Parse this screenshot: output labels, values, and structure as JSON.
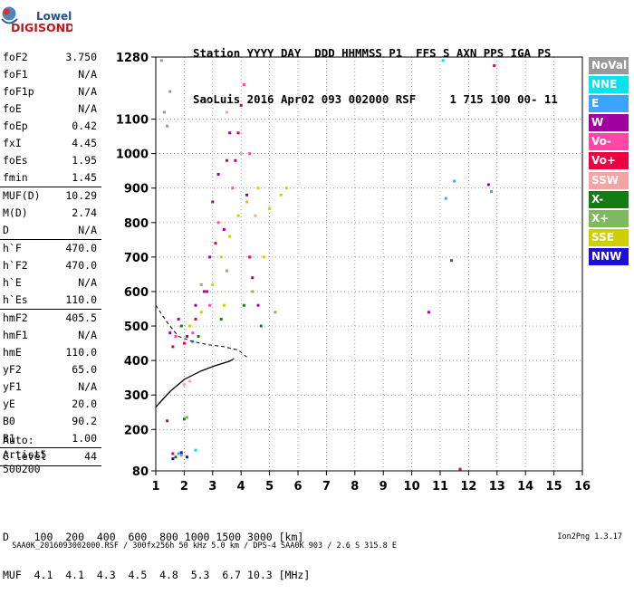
{
  "logo": {
    "line1": "Lowell",
    "line2": "DIGISONDE"
  },
  "header": {
    "row1": "Station YYYY DAY  DDD HHMMSS P1  FFS S AXN PPS IGA PS",
    "row2": "SaoLuis 2016 Apr02 093 002000 RSF     1 715 100 00- 11"
  },
  "params": [
    [
      {
        "label": "foF2",
        "value": "3.750"
      },
      {
        "label": "foF1",
        "value": "N/A"
      },
      {
        "label": "foF1p",
        "value": "N/A"
      },
      {
        "label": "foE",
        "value": "N/A"
      },
      {
        "label": "foEp",
        "value": "0.42"
      },
      {
        "label": "fxI",
        "value": "4.45"
      },
      {
        "label": "foEs",
        "value": "1.95"
      },
      {
        "label": "fmin",
        "value": "1.45"
      }
    ],
    [
      {
        "label": "MUF(D)",
        "value": "10.29"
      },
      {
        "label": "M(D)",
        "value": "2.74"
      },
      {
        "label": "D",
        "value": "N/A"
      }
    ],
    [
      {
        "label": "h`F",
        "value": "470.0"
      },
      {
        "label": "h`F2",
        "value": "470.0"
      },
      {
        "label": "h`E",
        "value": "N/A"
      },
      {
        "label": "h`Es",
        "value": "110.0"
      }
    ],
    [
      {
        "label": "hmF2",
        "value": "405.5"
      },
      {
        "label": "hmF1",
        "value": "N/A"
      },
      {
        "label": "hmE",
        "value": "110.0"
      },
      {
        "label": "yF2",
        "value": "65.0"
      },
      {
        "label": "yF1",
        "value": "N/A"
      },
      {
        "label": "yE",
        "value": "20.0"
      },
      {
        "label": "B0",
        "value": "90.2"
      },
      {
        "label": "B1",
        "value": "1.00"
      }
    ],
    [
      {
        "label": "C-level",
        "value": "44"
      }
    ]
  ],
  "auto": {
    "line1": "Auto:",
    "line2": "Artist5",
    "line3": "500200"
  },
  "legend": [
    {
      "name": "NoVal",
      "color": "#999999"
    },
    {
      "name": "NNE",
      "color": "#00e5f0"
    },
    {
      "name": "E",
      "color": "#3ea3ff"
    },
    {
      "name": "W",
      "color": "#a0009e"
    },
    {
      "name": "Vo-",
      "color": "#ff47a6"
    },
    {
      "name": "Vo+",
      "color": "#ee0040"
    },
    {
      "name": "SSW",
      "color": "#f4a4a4"
    },
    {
      "name": "X-",
      "color": "#137d13"
    },
    {
      "name": "X+",
      "color": "#80b860"
    },
    {
      "name": "SSE",
      "color": "#cfcf00"
    },
    {
      "name": "NNW",
      "color": "#1c10d8"
    }
  ],
  "dtable": {
    "row1": "D    100  200  400  600  800 1000 1500 3000 [km]",
    "row2": "MUF  4.1  4.1  4.3  4.5  4.8  5.3  6.7 10.3 [MHz]"
  },
  "footer": {
    "left": "SAA0K_2016093002000.RSF / 300fx256h 50 kHz 5.0 km / DPS-4 SAA0K 903 / 2.6 S 315.8 E",
    "right": "Ion2Png 1.3.17"
  },
  "chart_data": {
    "type": "scatter",
    "xlim": [
      1,
      16
    ],
    "ylim": [
      80,
      1280
    ],
    "xticks": [
      1,
      2,
      3,
      4,
      5,
      6,
      7,
      8,
      9,
      10,
      11,
      12,
      13,
      14,
      15,
      16
    ],
    "yticks": [
      80,
      200,
      300,
      400,
      500,
      600,
      700,
      800,
      900,
      1000,
      1100,
      1280
    ],
    "grid": true,
    "legend_position": "right",
    "series": [
      {
        "name": "W",
        "color": "#a0009e",
        "points": [
          [
            1.5,
            480
          ],
          [
            1.8,
            520
          ],
          [
            2.1,
            470
          ],
          [
            2.4,
            560
          ],
          [
            2.7,
            600
          ],
          [
            2.9,
            700
          ],
          [
            3.0,
            860
          ],
          [
            3.2,
            940
          ],
          [
            3.4,
            780
          ],
          [
            3.6,
            1060
          ],
          [
            3.8,
            980
          ],
          [
            4.0,
            1140
          ],
          [
            4.2,
            880
          ],
          [
            4.4,
            640
          ],
          [
            4.6,
            560
          ],
          [
            10.6,
            540
          ],
          [
            12.7,
            910
          ]
        ]
      },
      {
        "name": "SSE",
        "color": "#cfcf00",
        "points": [
          [
            2.2,
            500
          ],
          [
            2.6,
            540
          ],
          [
            3.0,
            620
          ],
          [
            3.3,
            700
          ],
          [
            3.6,
            760
          ],
          [
            3.9,
            820
          ],
          [
            4.2,
            860
          ],
          [
            4.6,
            900
          ],
          [
            5.0,
            840
          ],
          [
            5.4,
            880
          ],
          [
            5.6,
            900
          ],
          [
            4.8,
            700
          ],
          [
            3.4,
            560
          ]
        ]
      },
      {
        "name": "Vo+",
        "color": "#ee0040",
        "points": [
          [
            1.6,
            440
          ],
          [
            2.0,
            450
          ],
          [
            2.4,
            520
          ],
          [
            2.8,
            600
          ],
          [
            3.1,
            740
          ],
          [
            3.5,
            980
          ],
          [
            3.9,
            1060
          ],
          [
            4.3,
            700
          ],
          [
            1.4,
            225
          ],
          [
            1.6,
            130
          ],
          [
            11.7,
            85
          ],
          [
            12.9,
            1255
          ]
        ]
      },
      {
        "name": "Vo-",
        "color": "#ff47a6",
        "points": [
          [
            1.7,
            470
          ],
          [
            2.3,
            480
          ],
          [
            2.9,
            560
          ],
          [
            3.2,
            800
          ],
          [
            3.7,
            900
          ],
          [
            4.1,
            1200
          ],
          [
            4.3,
            1000
          ]
        ]
      },
      {
        "name": "X-",
        "color": "#137d13",
        "points": [
          [
            1.9,
            500
          ],
          [
            2.5,
            470
          ],
          [
            3.3,
            520
          ],
          [
            4.1,
            560
          ],
          [
            4.7,
            500
          ],
          [
            1.7,
            120
          ],
          [
            2.0,
            230
          ],
          [
            11.4,
            690
          ]
        ]
      },
      {
        "name": "X+",
        "color": "#80b860",
        "points": [
          [
            2.6,
            620
          ],
          [
            3.5,
            660
          ],
          [
            4.4,
            600
          ],
          [
            5.2,
            540
          ],
          [
            1.9,
            125
          ],
          [
            2.1,
            235
          ]
        ]
      },
      {
        "name": "SSW",
        "color": "#f4a4a4",
        "points": [
          [
            3.5,
            1120
          ],
          [
            4.0,
            1000
          ],
          [
            4.5,
            820
          ],
          [
            2.2,
            340
          ],
          [
            2.0,
            330
          ]
        ]
      },
      {
        "name": "E",
        "color": "#3ea3ff",
        "points": [
          [
            2.3,
            455
          ],
          [
            1.8,
            130
          ],
          [
            11.2,
            870
          ],
          [
            11.5,
            920
          ],
          [
            12.8,
            890
          ]
        ]
      },
      {
        "name": "NNE",
        "color": "#00e5f0",
        "points": [
          [
            2.4,
            140
          ],
          [
            11.1,
            1270
          ]
        ]
      },
      {
        "name": "NNW",
        "color": "#1c10d8",
        "points": [
          [
            1.6,
            115
          ],
          [
            1.9,
            133
          ],
          [
            2.1,
            120
          ]
        ]
      },
      {
        "name": "NoVal",
        "color": "#999999",
        "points": [
          [
            1.2,
            1270
          ],
          [
            1.3,
            1120
          ],
          [
            1.5,
            1180
          ],
          [
            1.4,
            1080
          ],
          [
            2.8,
            1150
          ]
        ]
      }
    ],
    "profile_curve": [
      [
        1.0,
        265
      ],
      [
        1.5,
        310
      ],
      [
        2.0,
        345
      ],
      [
        2.6,
        370
      ],
      [
        3.1,
        385
      ],
      [
        3.6,
        398
      ],
      [
        3.75,
        405.5
      ]
    ],
    "dashed_trace": [
      [
        1.0,
        560
      ],
      [
        1.4,
        510
      ],
      [
        1.8,
        470
      ],
      [
        2.3,
        455
      ],
      [
        2.9,
        445
      ],
      [
        3.4,
        440
      ],
      [
        3.9,
        430
      ],
      [
        4.2,
        410
      ]
    ]
  }
}
